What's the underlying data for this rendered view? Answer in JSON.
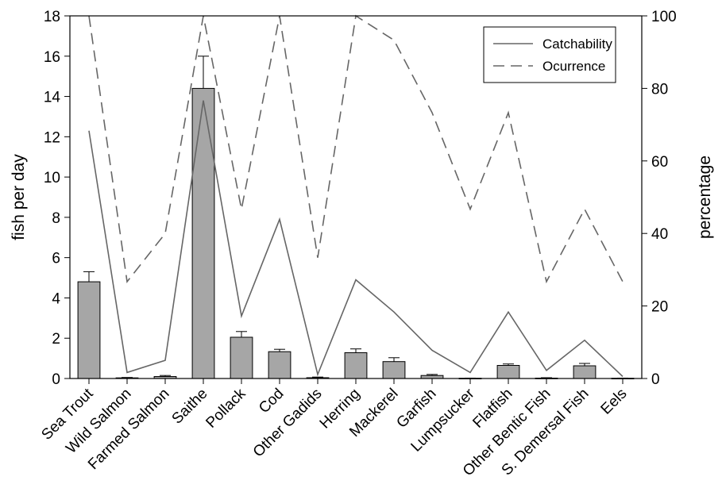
{
  "chart_data": {
    "type": "bar",
    "categories": [
      "Sea Trout",
      "Wild Salmon",
      "Farmed Salmon",
      "Saithe",
      "Pollack",
      "Cod",
      "Other Gadids",
      "Herring",
      "Mackerel",
      "Garfish",
      "Lumpsucker",
      "Flatfish",
      "Other Bentic Fish",
      "S. Demersal Fish",
      "Eels"
    ],
    "bars": {
      "values": [
        4.8,
        0.03,
        0.1,
        14.4,
        2.05,
        1.33,
        0.04,
        1.28,
        0.84,
        0.15,
        0.01,
        0.65,
        0.02,
        0.63,
        0.01
      ],
      "error_upper": [
        5.3,
        0.05,
        0.15,
        16.0,
        2.33,
        1.45,
        0.07,
        1.47,
        1.03,
        0.2,
        0.02,
        0.72,
        0.04,
        0.75,
        0.02
      ],
      "color": "#a6a6a6"
    },
    "series": [
      {
        "name": "Catchability",
        "axis": "left",
        "style": "solid",
        "color": "#666666",
        "values": [
          12.3,
          0.3,
          0.9,
          13.8,
          3.1,
          7.9,
          0.2,
          4.9,
          3.3,
          1.4,
          0.3,
          3.3,
          0.4,
          1.9,
          0.1
        ]
      },
      {
        "name": "Ocurrence",
        "axis": "right",
        "style": "dashed",
        "color": "#666666",
        "values": [
          100,
          26.7,
          40,
          100,
          46.7,
          100,
          33.3,
          100,
          93.3,
          73.3,
          46.7,
          73.3,
          26.7,
          46.7,
          26.7
        ]
      }
    ],
    "ylabel": "fish per day",
    "ylabel_right": "percentage",
    "ylim": [
      0,
      18
    ],
    "yticks": [
      0,
      2,
      4,
      6,
      8,
      10,
      12,
      14,
      16,
      18
    ],
    "ylim_right": [
      0,
      100
    ],
    "yticks_right": [
      0,
      20,
      40,
      60,
      80,
      100
    ],
    "legend_position": "top-right",
    "grid": false
  }
}
